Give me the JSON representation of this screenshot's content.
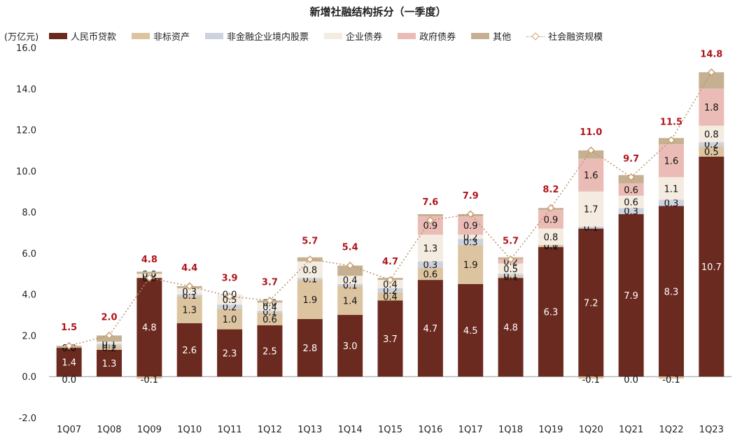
{
  "chart_data": {
    "type": "bar",
    "subtype": "stacked-bar-with-line",
    "title": "新增社融结构拆分（一季度）",
    "ylabel": "(万亿元)",
    "ylim": [
      -2.0,
      16.0
    ],
    "yticks": [
      "16.0",
      "14.0",
      "12.0",
      "10.0",
      "8.0",
      "6.0",
      "4.0",
      "2.0",
      "0.0",
      "-2.0"
    ],
    "ytick_values": [
      16,
      14,
      12,
      10,
      8,
      6,
      4,
      2,
      0,
      -2
    ],
    "grid": false,
    "legend_position": "top",
    "categories": [
      "1Q07",
      "1Q08",
      "1Q09",
      "1Q10",
      "1Q11",
      "1Q12",
      "1Q13",
      "1Q14",
      "1Q15",
      "1Q16",
      "1Q17",
      "1Q18",
      "1Q19",
      "1Q20",
      "1Q21",
      "1Q22",
      "1Q23"
    ],
    "series": [
      {
        "name": "人民币贷款",
        "color": "#6b2a20",
        "values": [
          1.4,
          1.3,
          4.8,
          2.6,
          2.3,
          2.5,
          2.8,
          3.0,
          3.7,
          4.7,
          4.5,
          4.8,
          6.3,
          7.2,
          7.9,
          8.3,
          10.7
        ],
        "labels": [
          "1.4",
          "1.3",
          "4.8",
          "2.6",
          "2.3",
          "2.5",
          "2.8",
          "3.0",
          "3.7",
          "4.7",
          "4.5",
          "4.8",
          "6.3",
          "7.2",
          "7.9",
          "8.3",
          "10.7"
        ]
      },
      {
        "name": "非标资产",
        "color": "#dcc4a0",
        "values": [
          0.0,
          0.2,
          -0.1,
          1.3,
          1.0,
          0.6,
          1.9,
          1.4,
          0.4,
          0.6,
          1.9,
          0.1,
          0.1,
          -0.1,
          0.0,
          -0.1,
          0.5
        ],
        "labels": [
          "0.0",
          "0.2",
          "-0.1",
          "1.3",
          "1.0",
          "0.6",
          "1.9",
          "1.4",
          "0.4",
          "0.6",
          "1.9",
          "0.1",
          "0.1",
          "-0.1",
          "0.0",
          "-0.1",
          "0.5"
        ]
      },
      {
        "name": "非金融企业境内股票",
        "color": "#ccd2de",
        "values": [
          0.0,
          0.1,
          0.0,
          0.1,
          0.2,
          0.1,
          0.1,
          0.1,
          0.2,
          0.3,
          0.3,
          0.1,
          0.0,
          0.1,
          0.3,
          0.3,
          0.2
        ],
        "labels": [
          "0.0",
          "0.1",
          "0.0",
          "0.1",
          "0.2",
          "0.1",
          "0.1",
          "0.1",
          "0.2",
          "0.3",
          "0.3",
          "0.1",
          "0.0",
          "0.1",
          "0.3",
          "0.3",
          "0.2"
        ]
      },
      {
        "name": "企业债券",
        "color": "#f4ece0",
        "values": [
          0.0,
          0.1,
          0.2,
          0.3,
          0.5,
          0.4,
          0.8,
          0.4,
          0.4,
          1.3,
          0.2,
          0.5,
          0.8,
          1.7,
          0.6,
          1.1,
          0.8
        ],
        "labels": [
          "0.0",
          "0.1",
          "0.2",
          "0.3",
          "0.5",
          "0.4",
          "0.8",
          "0.4",
          "0.4",
          "1.3",
          "0.2",
          "0.5",
          "0.8",
          "1.7",
          "0.6",
          "1.1",
          "0.8"
        ]
      },
      {
        "name": "政府债券",
        "color": "#ebbcb6",
        "values": [
          0.0,
          0.0,
          0.0,
          0.0,
          0.0,
          0.0,
          0.0,
          0.0,
          0.0,
          0.9,
          0.9,
          0.2,
          0.9,
          1.6,
          0.6,
          1.6,
          1.8
        ],
        "labels": [
          "",
          "",
          "0.0",
          "",
          "0.0",
          "0.0",
          "",
          "",
          "",
          "0.9",
          "0.9",
          "0.2",
          "0.9",
          "1.6",
          "0.6",
          "1.6",
          "1.8"
        ]
      },
      {
        "name": "其他",
        "color": "#c5b192",
        "values": [
          0.1,
          0.3,
          0.1,
          0.1,
          0.0,
          0.1,
          0.2,
          0.5,
          0.1,
          0.1,
          0.1,
          0.1,
          0.1,
          0.4,
          0.4,
          0.3,
          0.8
        ],
        "labels": [
          "",
          "",
          "",
          "",
          "",
          "",
          "",
          "",
          "",
          "",
          "",
          "",
          "",
          "",
          "",
          "",
          ""
        ]
      }
    ],
    "line": {
      "name": "社会融资规模",
      "color": "#b8926a",
      "values": [
        1.5,
        2.0,
        4.8,
        4.4,
        3.9,
        3.7,
        5.7,
        5.4,
        4.7,
        7.6,
        7.9,
        5.7,
        8.2,
        11.0,
        9.7,
        11.5,
        14.8
      ],
      "labels": [
        "1.5",
        "2.0",
        "4.8",
        "4.4",
        "3.9",
        "3.7",
        "5.7",
        "5.4",
        "4.7",
        "7.6",
        "7.9",
        "5.7",
        "8.2",
        "11.0",
        "9.7",
        "11.5",
        "14.8"
      ]
    }
  }
}
